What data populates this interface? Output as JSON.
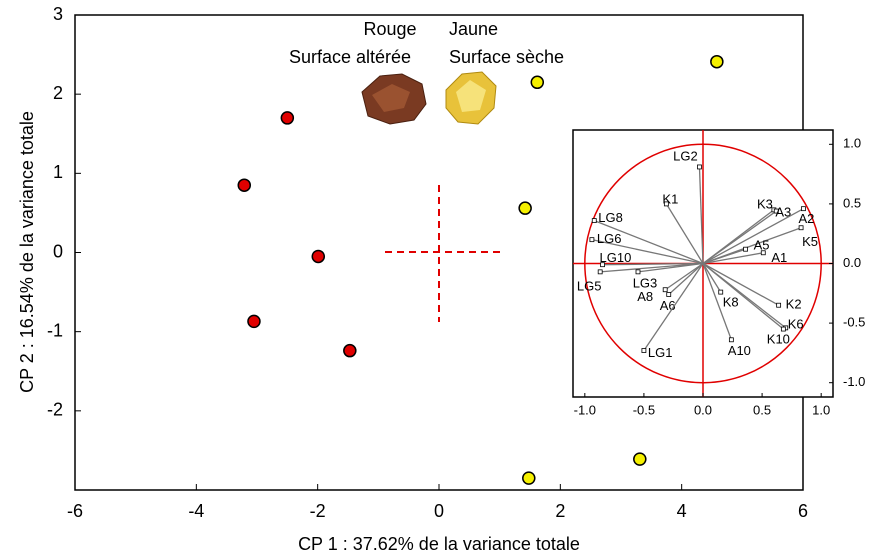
{
  "chart_data": [
    {
      "type": "scatter",
      "xlabel": "CP 1 : 37.62% de la variance totale",
      "ylabel": "CP 2 : 16.54% de la variance totale",
      "xlim": [
        -6,
        6
      ],
      "ylim": [
        -3,
        3
      ],
      "xticks": [
        -6,
        -4,
        -2,
        0,
        2,
        4,
        6
      ],
      "yticks": [
        -2,
        -1,
        0,
        1,
        2,
        3
      ],
      "annotations": [
        "Rouge",
        "Surface altérée",
        "Jaune",
        "Surface sèche"
      ],
      "series": [
        {
          "color": "#e00000",
          "x": [
            -2.5,
            -3.21,
            -1.99,
            -3.05,
            -1.47
          ],
          "values": [
            1.7,
            0.85,
            -0.05,
            -0.87,
            -1.24
          ]
        },
        {
          "color": "#f5f000",
          "x": [
            1.62,
            4.58,
            1.42,
            3.31,
            1.48
          ],
          "values": [
            2.15,
            2.41,
            0.56,
            -2.61,
            -2.85
          ]
        }
      ]
    },
    {
      "type": "loadings",
      "xlim": [
        -1.1,
        1.1
      ],
      "ylim": [
        -1.12,
        1.12
      ],
      "xticks": [
        {
          "value": -1,
          "label": "-1.0"
        },
        -0.5,
        {
          "value": 0,
          "label": "0.0"
        },
        0.5,
        {
          "value": 1,
          "label": "1.0"
        }
      ],
      "yticks": [
        {
          "value": 1,
          "label": "1.0"
        },
        0.5,
        {
          "value": 0,
          "label": "0.0"
        },
        -0.5,
        {
          "value": -1,
          "label": "-1.0"
        }
      ],
      "color": "#e00000",
      "labels": [
        "LG2",
        "K1",
        "LG8",
        "LG6",
        "LG10",
        "LG5",
        "LG3",
        "A8",
        "A6",
        "LG1",
        "K3",
        "A3",
        "A2",
        "K5",
        "A5",
        "A1",
        "K8",
        "K2",
        "K6",
        "K10",
        "A10"
      ],
      "x": [
        -0.03,
        -0.31,
        -0.92,
        -0.94,
        -0.85,
        -0.87,
        -0.55,
        -0.32,
        -0.29,
        -0.5,
        0.6,
        0.62,
        0.85,
        0.83,
        0.36,
        0.51,
        0.15,
        0.64,
        0.7,
        0.68,
        0.24
      ],
      "values": [
        0.81,
        0.5,
        0.36,
        0.2,
        -0.01,
        -0.07,
        -0.07,
        -0.22,
        -0.26,
        -0.73,
        0.45,
        0.44,
        0.46,
        0.3,
        0.12,
        0.09,
        -0.24,
        -0.35,
        -0.54,
        -0.55,
        -0.64
      ]
    }
  ]
}
